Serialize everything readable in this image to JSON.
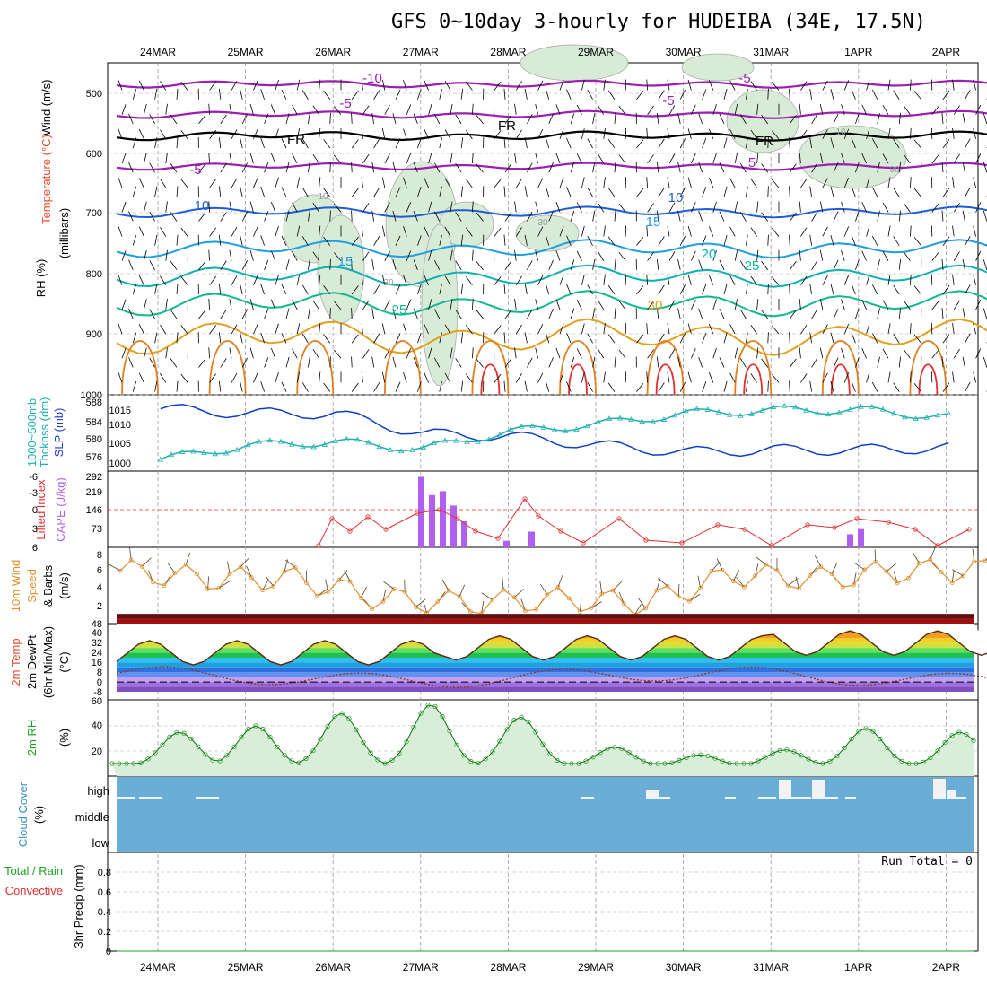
{
  "title": "GFS 0~10day 3-hourly for HUDEIBA (34E, 17.5N)",
  "dates": [
    "24MAR",
    "25MAR",
    "26MAR",
    "27MAR",
    "28MAR",
    "29MAR",
    "30MAR",
    "31MAR",
    "1APR",
    "2APR"
  ],
  "colors": {
    "relhum": "#cfe6cf",
    "temp_minus10": "#9b1fb0",
    "temp_fr": "#000000",
    "temp_10": "#1f5fd0",
    "temp_15": "#1f9fe0",
    "temp_20": "#10b0b0",
    "temp_25": "#10b890",
    "temp_30": "#e0a020",
    "temp_hot": "#e03030",
    "thickness": "#1040c0",
    "slp": "#20b0b0",
    "lifted": "#e03030",
    "cape": "#b060f0",
    "wind": "#e09030",
    "rh": "#20a020",
    "cloud": "#6aaed6",
    "precip": "#20a020"
  },
  "panels": {
    "upper": {
      "ylabel_rh": "RH (%)",
      "ylabel_temp": "Temperature (°C)",
      "ylabel_wind": "Wind (m/s)",
      "ylabel_units": "(millibars)",
      "yticks": [
        "500",
        "600",
        "700",
        "800",
        "900",
        "1000"
      ],
      "contour_labels": [
        "-10",
        "-5",
        "FR",
        "-5",
        "10",
        "15",
        "20",
        "25",
        "30",
        "10",
        "30",
        "10",
        "30",
        "30"
      ]
    },
    "thickness": {
      "ylabel_left": "1000~500mb",
      "ylabel_left2": "Thcknss (dm)",
      "ylabel_right": "SLP (mb)",
      "yticks_left": [
        "588",
        "584",
        "580",
        "576"
      ],
      "yticks_right": [
        "1015",
        "1010",
        "1005",
        "1000"
      ]
    },
    "lifted": {
      "ylabel_left": "Lifted Index",
      "ylabel_right": "CAPE (J/kg)",
      "yticks_left": [
        "-6",
        "-3",
        "0",
        "3",
        "6"
      ],
      "yticks_right": [
        "292",
        "219",
        "146",
        "73"
      ]
    },
    "wind10": {
      "ylabel1": "10m Wind",
      "ylabel2": "Speed",
      "ylabel3": "& Barbs",
      "ylabel_units": "(m/s)",
      "yticks": [
        "8",
        "6",
        "4",
        "2"
      ]
    },
    "temp2m": {
      "ylabel1": "2m Temp",
      "ylabel2": "2m DewPt",
      "ylabel3": "(6hr Min/Max)",
      "ylabel_units": "(°C)",
      "yticks": [
        "48",
        "40",
        "32",
        "24",
        "16",
        "8",
        "0",
        "-8"
      ]
    },
    "rh2m": {
      "ylabel": "2m RH",
      "ylabel_units": "(%)",
      "yticks": [
        "60",
        "40",
        "20"
      ]
    },
    "cloud": {
      "ylabel": "Cloud Cover",
      "ylabel_units": "(%)",
      "labels": [
        "high",
        "middle",
        "low"
      ]
    },
    "precip": {
      "ylabel1": "Total / Rain",
      "ylabel2": "Convective",
      "ylabel_units": "3hr Precip (mm)",
      "yticks": [
        "0.8",
        "0.6",
        "0.4",
        "0.2",
        "0"
      ],
      "run_total": "Run Total = 0"
    }
  },
  "chart_data": [
    {
      "type": "line",
      "name": "Thickness",
      "x": [
        "24MAR",
        "25MAR",
        "26MAR",
        "27MAR",
        "28MAR",
        "29MAR",
        "30MAR",
        "31MAR",
        "1APR",
        "2APR"
      ],
      "series": [
        {
          "name": "1000~500mb Thcknss (dm)",
          "values": [
            586.5,
            585.5,
            585.5,
            581,
            580.5,
            578.5,
            577,
            577.5,
            577.5,
            578
          ]
        },
        {
          "name": "SLP (mb)",
          "values": [
            1001,
            1005,
            1006,
            1004,
            1009,
            1011,
            1014,
            1015,
            1015,
            1013
          ]
        }
      ]
    },
    {
      "type": "bar",
      "name": "CAPE",
      "x": [
        "27MAR 00",
        "27MAR 03",
        "27MAR 06",
        "27MAR 09",
        "27MAR 12",
        "28MAR 03",
        "28MAR 06",
        "1APR 00",
        "1APR 03"
      ],
      "values": [
        270,
        200,
        215,
        160,
        100,
        25,
        60,
        50,
        70
      ],
      "ylim": [
        0,
        292
      ]
    },
    {
      "type": "line",
      "name": "Lifted Index",
      "x": [
        "26MAR",
        "27MAR",
        "28MAR",
        "29MAR",
        "31MAR",
        "1APR",
        "2APR"
      ],
      "values": [
        3,
        0,
        -1,
        5,
        3,
        2,
        4
      ],
      "ylim": [
        6,
        -6
      ]
    },
    {
      "type": "line",
      "name": "10m Wind Speed",
      "x": [
        "24MAR",
        "25MAR",
        "26MAR",
        "27MAR",
        "28MAR",
        "29MAR",
        "30MAR",
        "31MAR",
        "1APR",
        "2APR"
      ],
      "values": [
        6.5,
        5.5,
        5.5,
        3.0,
        2.5,
        3.0,
        2.5,
        6.0,
        5.5,
        6.5
      ],
      "ylim": [
        0,
        9
      ]
    },
    {
      "type": "area",
      "name": "2m RH",
      "x": [
        "24MAR",
        "25MAR",
        "26MAR",
        "27MAR",
        "28MAR",
        "29MAR",
        "30MAR",
        "31MAR",
        "1APR",
        "2APR"
      ],
      "values": [
        10,
        40,
        50,
        57,
        47,
        23,
        17,
        21,
        38,
        35
      ],
      "ylim": [
        0,
        60
      ]
    },
    {
      "type": "line",
      "name": "3hr Precip",
      "values": [
        0
      ],
      "ylim": [
        0,
        1
      ]
    }
  ]
}
